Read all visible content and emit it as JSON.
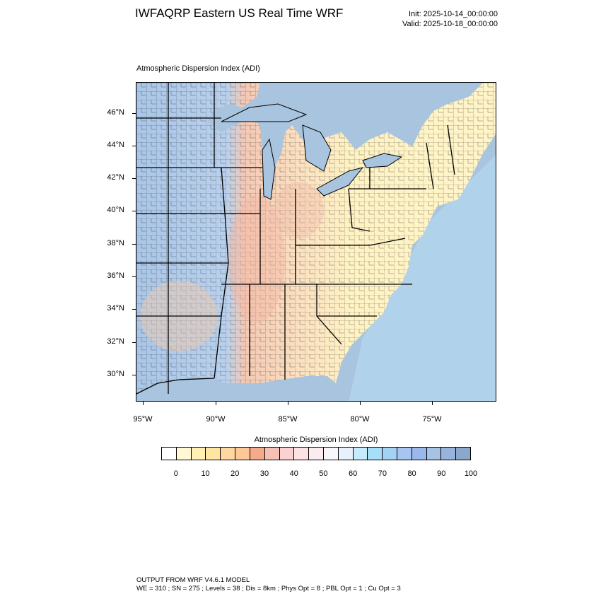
{
  "header": {
    "title": "IWFAQRP Eastern US Real Time WRF",
    "init": "Init: 2025-10-14_00:00:00",
    "valid": "Valid: 2025-10-18_00:00:00"
  },
  "map": {
    "title": "Atmospheric Dispersion Index   (ADI)",
    "lat_labels": [
      "46°N",
      "44°N",
      "42°N",
      "40°N",
      "38°N",
      "36°N",
      "34°N",
      "32°N",
      "30°N"
    ],
    "lon_labels": [
      "95°W",
      "90°W",
      "85°W",
      "80°W",
      "75°W"
    ],
    "colors": {
      "land_low": "#fff6c8",
      "land_mid": "#f7c8a8",
      "land_high": "#a9c6e8",
      "water": "#a8c4de",
      "coastal_water": "#9fd8f3",
      "boundary": "#000000"
    }
  },
  "legend": {
    "title": "Atmospheric Dispersion Index  (ADI)",
    "labels": [
      "0",
      "10",
      "20",
      "30",
      "40",
      "50",
      "60",
      "70",
      "80",
      "90",
      "100"
    ],
    "colors": [
      "#ffffff",
      "#fff8d2",
      "#fff0b4",
      "#ffe6a0",
      "#ffd7a0",
      "#ffc896",
      "#f5aa8c",
      "#f7c0b4",
      "#fad2d2",
      "#fce2e2",
      "#fcecf0",
      "#f6f6fb",
      "#e8f0fb",
      "#c6ecfb",
      "#a6e0f8",
      "#a4d2f4",
      "#a8c4f0",
      "#9ab8ec",
      "#a6c2e4",
      "#98b4dc",
      "#8aa8cc"
    ]
  },
  "footer": {
    "line1": "OUTPUT FROM WRF V4.6.1 MODEL",
    "line2": "WE = 310 ; SN = 275 ; Levels = 38 ; Dis = 8km ; Phys Opt = 8 ; PBL Opt = 1 ; Cu Opt = 3"
  }
}
